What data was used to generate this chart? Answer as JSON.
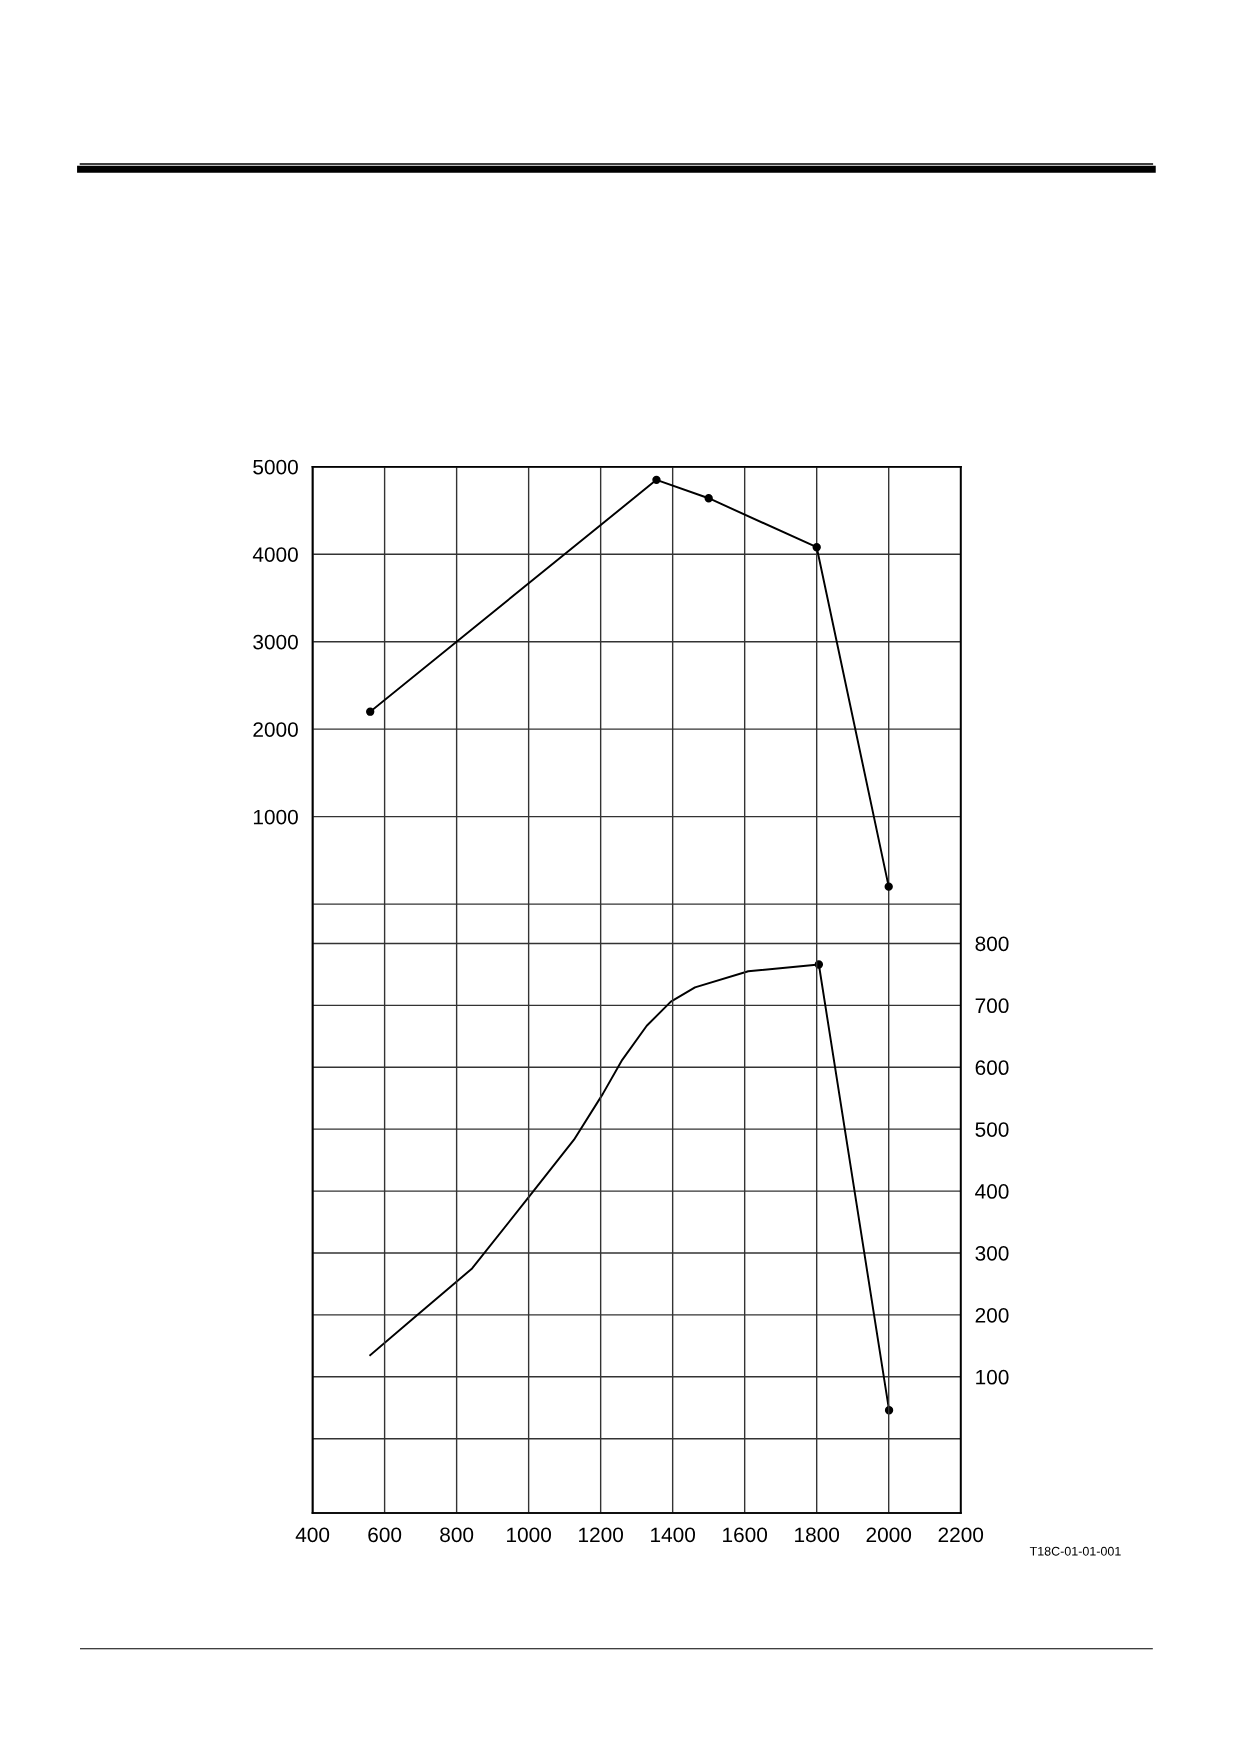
{
  "chart_data": {
    "type": "line",
    "x": [
      560,
      1355,
      1500,
      1800,
      2000
    ],
    "series": [
      {
        "color": "#000000",
        "marker": "circle",
        "values": [
          2200,
          4850,
          4640,
          4080,
          200
        ]
      },
      {
        "color": "#000000",
        "marker": "none",
        "axis": "y2",
        "x": [
          560,
          681,
          843,
          1004,
          1126,
          1206,
          1260,
          1328,
          1395,
          1462,
          1610,
          1806,
          2001
        ],
        "values": [
          135,
          195,
          275,
          393,
          483,
          557,
          612,
          667,
          706,
          729,
          755,
          766,
          46
        ]
      },
      {
        "type": "scatter",
        "color": "#000000",
        "marker": "circle",
        "axis": "y2",
        "x": [
          1806,
          2001
        ],
        "values": [
          766,
          46
        ]
      }
    ],
    "xlim": [
      400,
      2200
    ],
    "xticks": [
      400,
      600,
      800,
      1000,
      1200,
      1400,
      1600,
      1800,
      2000,
      2200
    ],
    "ylim": [
      -6960,
      5000
    ],
    "yticks": [
      {
        "value": 0,
        "label": null
      },
      1000,
      2000,
      3000,
      4000,
      5000
    ],
    "y2lim": [
      -120,
      1570
    ],
    "y2ticks": [
      {
        "value": 0,
        "label": null
      },
      100,
      200,
      300,
      400,
      500,
      600,
      700,
      800
    ],
    "grid": true,
    "line_style": "solid",
    "annotations": [
      "T18C-01-01-001"
    ]
  }
}
